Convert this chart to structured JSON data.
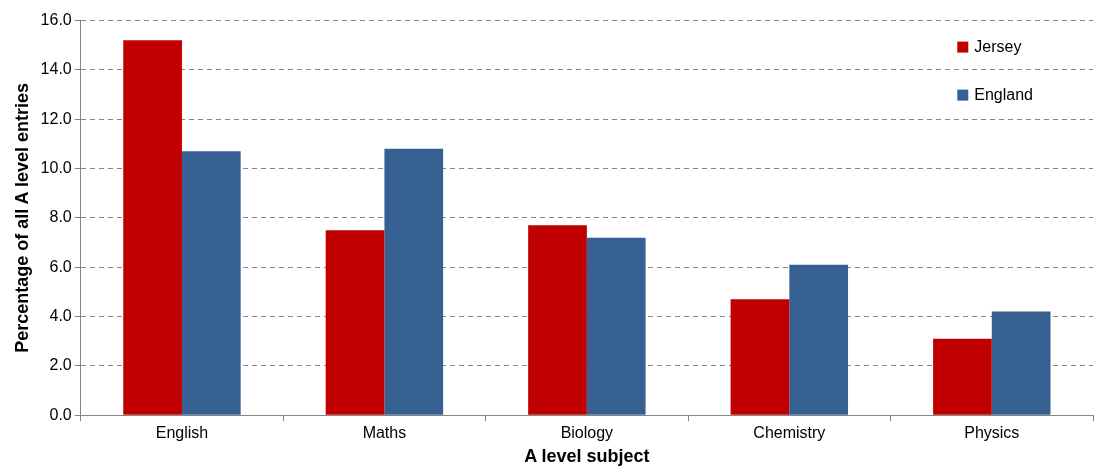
{
  "chart_data": {
    "type": "bar",
    "xlabel": "A level subject",
    "ylabel": "Percentage of all A level entries",
    "categories": [
      "English",
      "Maths",
      "Biology",
      "Chemistry",
      "Physics"
    ],
    "series": [
      {
        "name": "Jersey",
        "color": "#c00000",
        "values": [
          15.2,
          7.5,
          7.7,
          4.7,
          3.1
        ]
      },
      {
        "name": "England",
        "color": "#376092",
        "values": [
          10.7,
          10.8,
          7.2,
          6.1,
          4.2
        ]
      }
    ],
    "ylim": [
      0,
      16
    ],
    "yticks": [
      {
        "value": 0,
        "label": "0.0"
      },
      {
        "value": 2,
        "label": "2.0"
      },
      {
        "value": 4,
        "label": "4.0"
      },
      {
        "value": 6,
        "label": "6.0"
      },
      {
        "value": 8,
        "label": "8.0"
      },
      {
        "value": 10,
        "label": "10.0"
      },
      {
        "value": 12,
        "label": "12.0"
      },
      {
        "value": 14,
        "label": "14.0"
      },
      {
        "value": 16,
        "label": "16.0"
      }
    ],
    "grid": "y",
    "line_style": "dashed",
    "legend": "top right"
  }
}
